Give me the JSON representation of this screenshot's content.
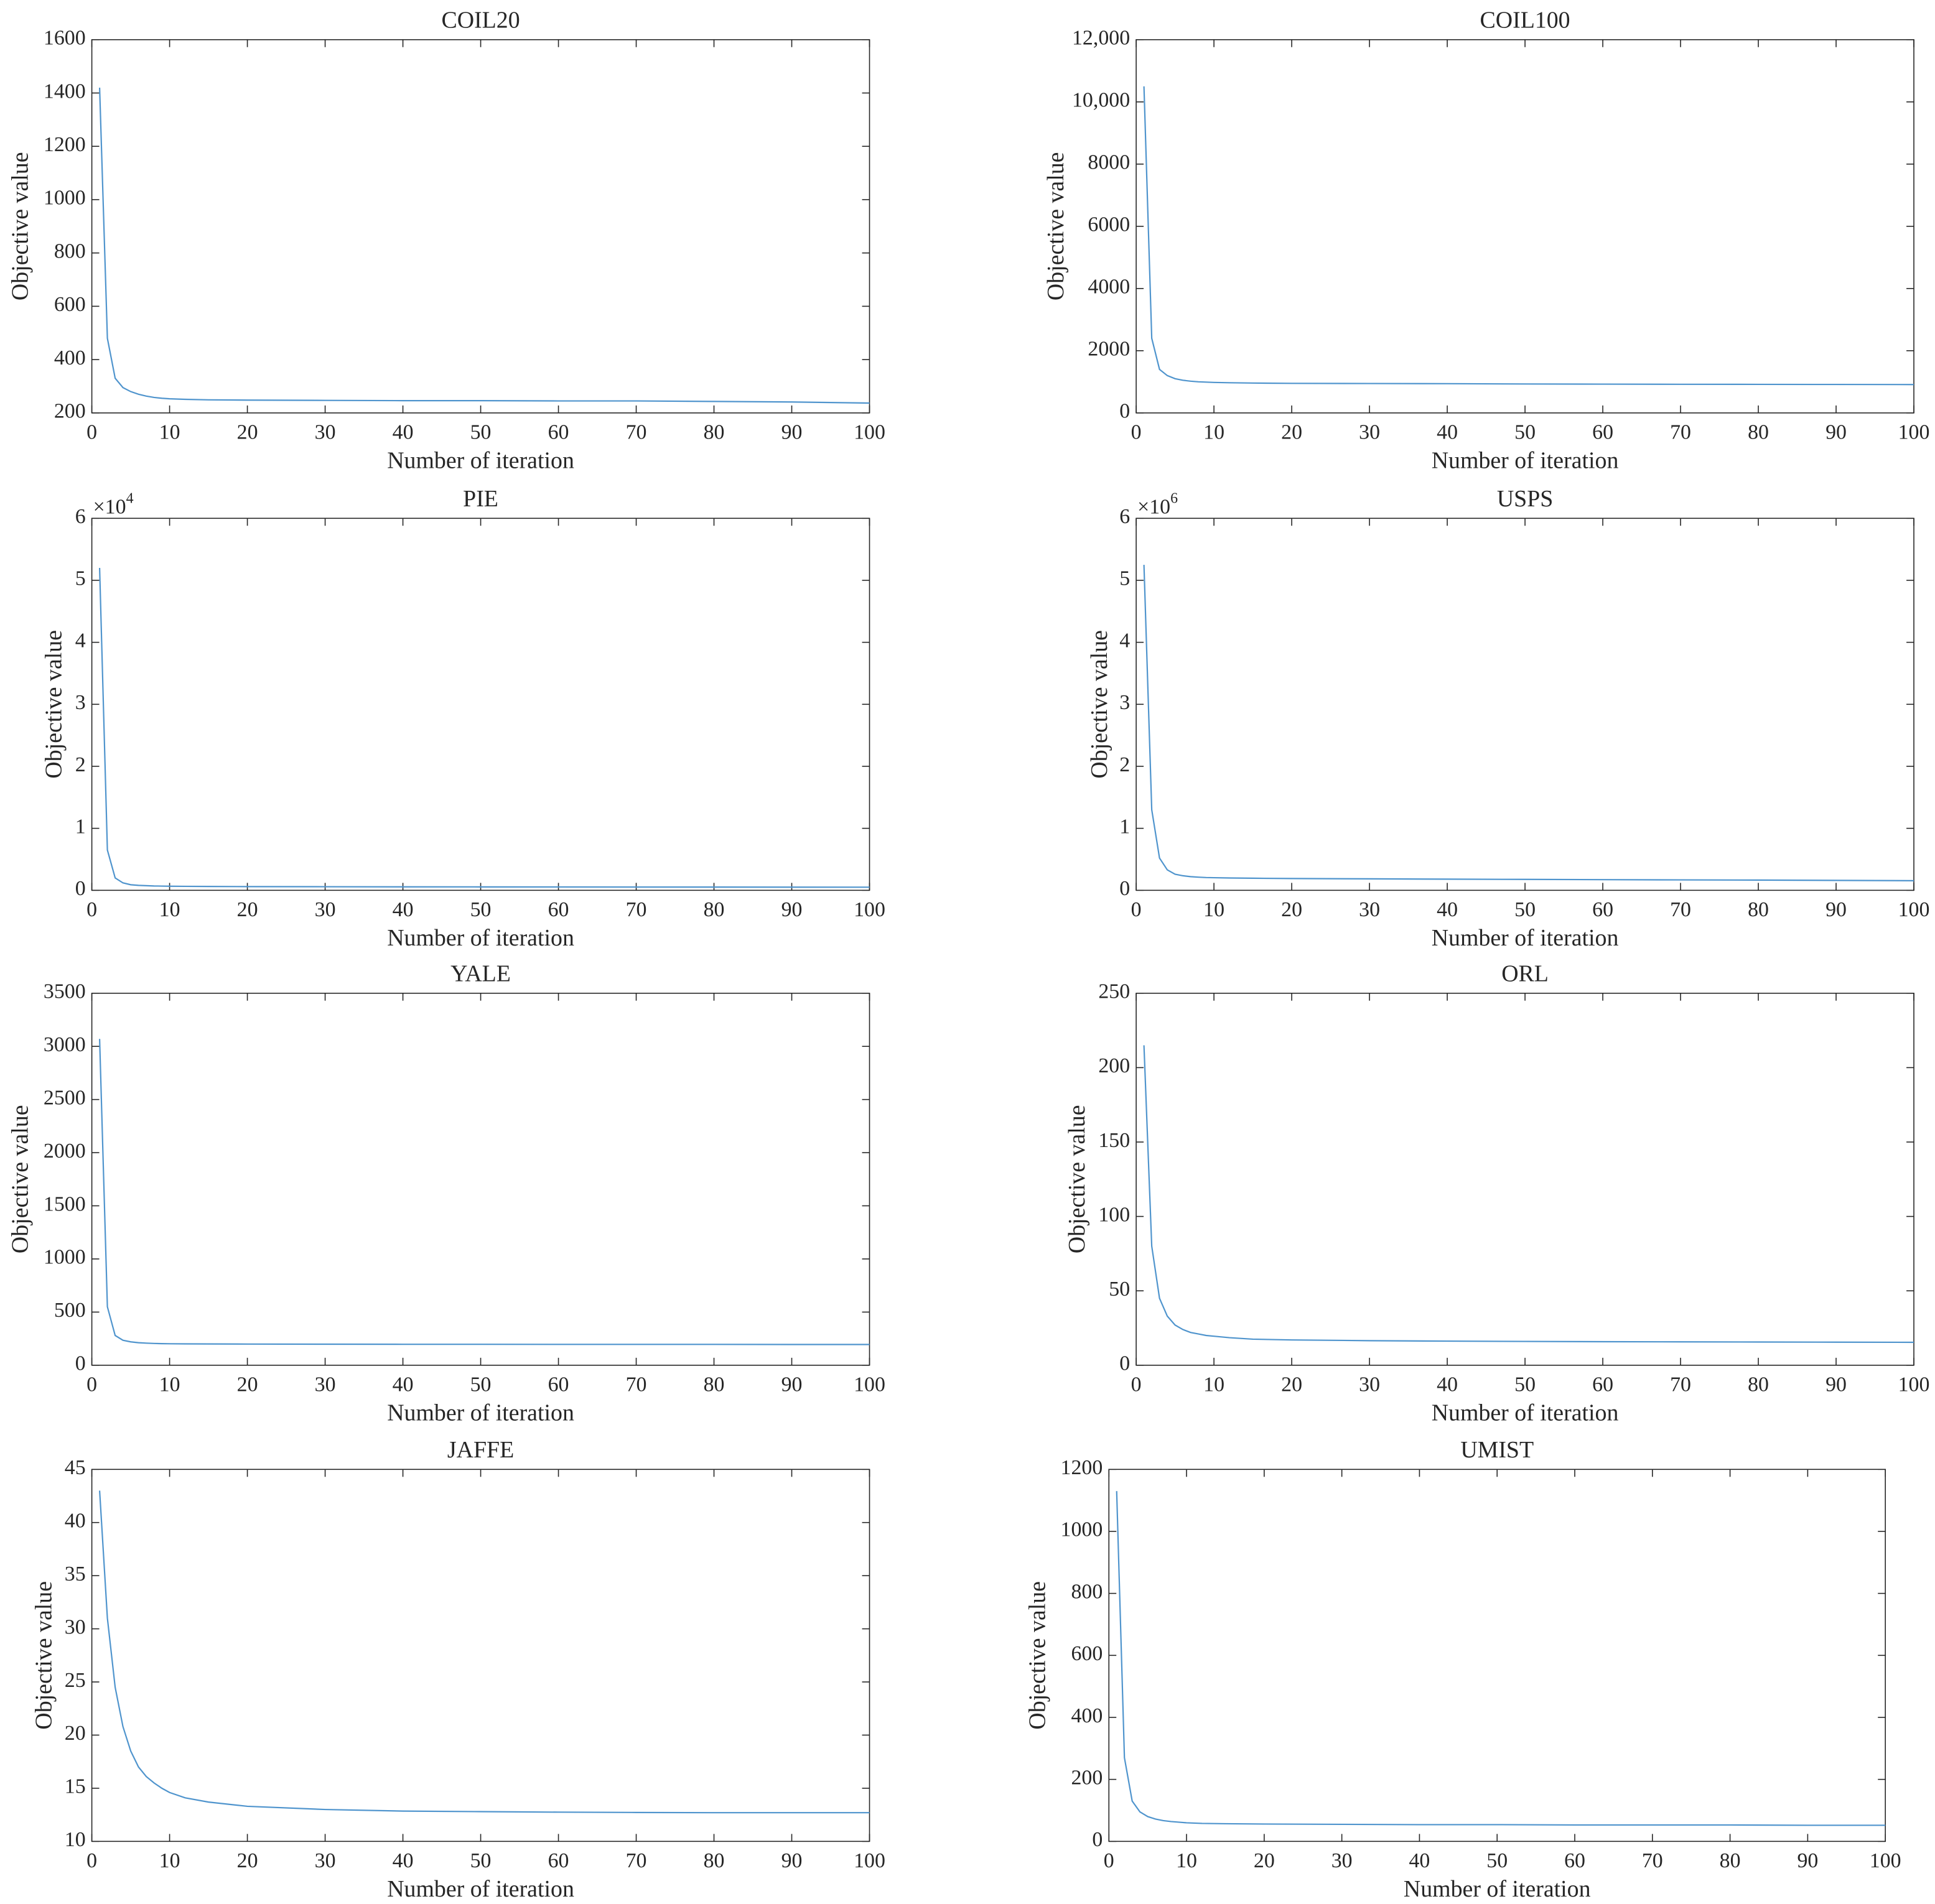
{
  "chart_data": [
    {
      "type": "line",
      "title": "COIL20",
      "x_label": "Number of iteration",
      "y_label": "Objective value",
      "color": "#4f94cd",
      "x": [
        1,
        2,
        3,
        4,
        5,
        6,
        7,
        8,
        9,
        10,
        12,
        15,
        20,
        30,
        40,
        50,
        60,
        70,
        80,
        90,
        100
      ],
      "values": [
        1420,
        480,
        330,
        295,
        280,
        270,
        263,
        258,
        255,
        253,
        251,
        249,
        248,
        247,
        246,
        246,
        245,
        245,
        243,
        241,
        237
      ],
      "xlim": [
        0,
        100
      ],
      "xticks": [
        0,
        10,
        20,
        30,
        40,
        50,
        60,
        70,
        80,
        90,
        100
      ],
      "ylim": [
        200,
        1600
      ],
      "yticks": [
        200,
        400,
        600,
        800,
        1000,
        1200,
        1400,
        1600
      ]
    },
    {
      "type": "line",
      "title": "COIL100",
      "x_label": "Number of iteration",
      "y_label": "Objective value",
      "color": "#4f94cd",
      "x": [
        1,
        2,
        3,
        4,
        5,
        6,
        7,
        8,
        9,
        10,
        12,
        15,
        20,
        30,
        40,
        50,
        60,
        70,
        80,
        90,
        100
      ],
      "values": [
        10500,
        2400,
        1400,
        1200,
        1100,
        1050,
        1020,
        1000,
        990,
        980,
        970,
        960,
        950,
        945,
        940,
        930,
        925,
        920,
        918,
        915,
        912
      ],
      "xlim": [
        0,
        100
      ],
      "xticks": [
        0,
        10,
        20,
        30,
        40,
        50,
        60,
        70,
        80,
        90,
        100
      ],
      "ylim": [
        0,
        12000
      ],
      "yticks": [
        0,
        2000,
        4000,
        6000,
        8000,
        {
          "value": 10000,
          "label": "10,000"
        },
        {
          "value": 12000,
          "label": "12,000"
        }
      ]
    },
    {
      "type": "line",
      "title": "PIE",
      "x_label": "Number of iteration",
      "y_label": "Objective value",
      "color": "#4f94cd",
      "y_scale_base": "×10",
      "y_scale_exponent": "4",
      "x": [
        1,
        2,
        3,
        4,
        5,
        6,
        7,
        8,
        9,
        10,
        12,
        15,
        20,
        30,
        40,
        50,
        60,
        70,
        80,
        90,
        100
      ],
      "values": [
        52000,
        6500,
        2000,
        1200,
        900,
        800,
        750,
        700,
        680,
        660,
        640,
        620,
        600,
        580,
        560,
        550,
        540,
        530,
        520,
        510,
        500
      ],
      "xlim": [
        0,
        100
      ],
      "xticks": [
        0,
        10,
        20,
        30,
        40,
        50,
        60,
        70,
        80,
        90,
        100
      ],
      "ylim": [
        0,
        60000
      ],
      "yticks": [
        0,
        {
          "value": 10000,
          "label": "1"
        },
        {
          "value": 20000,
          "label": "2"
        },
        {
          "value": 30000,
          "label": "3"
        },
        {
          "value": 40000,
          "label": "4"
        },
        {
          "value": 50000,
          "label": "5"
        },
        {
          "value": 60000,
          "label": "6"
        }
      ]
    },
    {
      "type": "line",
      "title": "USPS",
      "x_label": "Number of iteration",
      "y_label": "Objective value",
      "color": "#4f94cd",
      "y_scale_base": "×10",
      "y_scale_exponent": "6",
      "x": [
        1,
        2,
        3,
        4,
        5,
        6,
        7,
        8,
        9,
        10,
        12,
        15,
        20,
        30,
        40,
        50,
        60,
        70,
        80,
        90,
        100
      ],
      "values": [
        5250000,
        1300000,
        520000,
        330000,
        260000,
        235000,
        220000,
        212000,
        206000,
        203000,
        199000,
        195000,
        190000,
        185000,
        180000,
        176000,
        172000,
        168000,
        165000,
        160000,
        155000
      ],
      "xlim": [
        0,
        100
      ],
      "xticks": [
        0,
        10,
        20,
        30,
        40,
        50,
        60,
        70,
        80,
        90,
        100
      ],
      "ylim": [
        0,
        6000000
      ],
      "yticks": [
        0,
        {
          "value": 1000000,
          "label": "1"
        },
        {
          "value": 2000000,
          "label": "2"
        },
        {
          "value": 3000000,
          "label": "3"
        },
        {
          "value": 4000000,
          "label": "4"
        },
        {
          "value": 5000000,
          "label": "5"
        },
        {
          "value": 6000000,
          "label": "6"
        }
      ]
    },
    {
      "type": "line",
      "title": "YALE",
      "x_label": "Number of iteration",
      "y_label": "Objective value",
      "color": "#4f94cd",
      "x": [
        1,
        2,
        3,
        4,
        5,
        6,
        7,
        8,
        9,
        10,
        12,
        15,
        20,
        30,
        40,
        50,
        60,
        70,
        80,
        90,
        100
      ],
      "values": [
        3070,
        550,
        280,
        235,
        220,
        212,
        208,
        205,
        203,
        202,
        201,
        200,
        199,
        198,
        197,
        197,
        196,
        196,
        196,
        195,
        195
      ],
      "xlim": [
        0,
        100
      ],
      "xticks": [
        0,
        10,
        20,
        30,
        40,
        50,
        60,
        70,
        80,
        90,
        100
      ],
      "ylim": [
        0,
        3500
      ],
      "yticks": [
        0,
        500,
        1000,
        1500,
        2000,
        2500,
        3000,
        3500
      ]
    },
    {
      "type": "line",
      "title": "ORL",
      "x_label": "Number of iteration",
      "y_label": "Objective value",
      "color": "#4f94cd",
      "x": [
        1,
        2,
        3,
        4,
        5,
        6,
        7,
        8,
        9,
        10,
        12,
        15,
        20,
        30,
        40,
        50,
        60,
        70,
        80,
        90,
        100
      ],
      "values": [
        215,
        80,
        45,
        33,
        27,
        24,
        22,
        21,
        20,
        19.5,
        18.5,
        17.5,
        17,
        16.5,
        16.2,
        16,
        15.8,
        15.7,
        15.6,
        15.5,
        15.4
      ],
      "xlim": [
        0,
        100
      ],
      "xticks": [
        0,
        10,
        20,
        30,
        40,
        50,
        60,
        70,
        80,
        90,
        100
      ],
      "ylim": [
        0,
        250
      ],
      "yticks": [
        0,
        50,
        100,
        150,
        200,
        250
      ]
    },
    {
      "type": "line",
      "title": "JAFFE",
      "x_label": "Number of iteration",
      "y_label": "Objective value",
      "color": "#4f94cd",
      "x": [
        1,
        2,
        3,
        4,
        5,
        6,
        7,
        8,
        9,
        10,
        12,
        15,
        20,
        30,
        40,
        50,
        60,
        70,
        80,
        90,
        100
      ],
      "values": [
        43,
        31,
        24.5,
        20.8,
        18.5,
        17,
        16.1,
        15.5,
        15,
        14.6,
        14.1,
        13.7,
        13.3,
        13,
        12.85,
        12.8,
        12.75,
        12.72,
        12.7,
        12.7,
        12.7
      ],
      "xlim": [
        0,
        100
      ],
      "xticks": [
        0,
        10,
        20,
        30,
        40,
        50,
        60,
        70,
        80,
        90,
        100
      ],
      "ylim": [
        10,
        45
      ],
      "yticks": [
        10,
        15,
        20,
        25,
        30,
        35,
        40,
        45
      ]
    },
    {
      "type": "line",
      "title": "UMIST",
      "x_label": "Number of iteration",
      "y_label": "Objective value",
      "color": "#4f94cd",
      "x": [
        1,
        2,
        3,
        4,
        5,
        6,
        7,
        8,
        9,
        10,
        12,
        15,
        20,
        30,
        40,
        50,
        60,
        70,
        80,
        90,
        100
      ],
      "values": [
        1130,
        270,
        130,
        95,
        80,
        72,
        67,
        64,
        62,
        60,
        58,
        57,
        56,
        55,
        54,
        54,
        53,
        53,
        53,
        52,
        52
      ],
      "xlim": [
        0,
        100
      ],
      "xticks": [
        0,
        10,
        20,
        30,
        40,
        50,
        60,
        70,
        80,
        90,
        100
      ],
      "ylim": [
        0,
        1200
      ],
      "yticks": [
        0,
        200,
        400,
        600,
        800,
        1000,
        1200
      ]
    }
  ]
}
